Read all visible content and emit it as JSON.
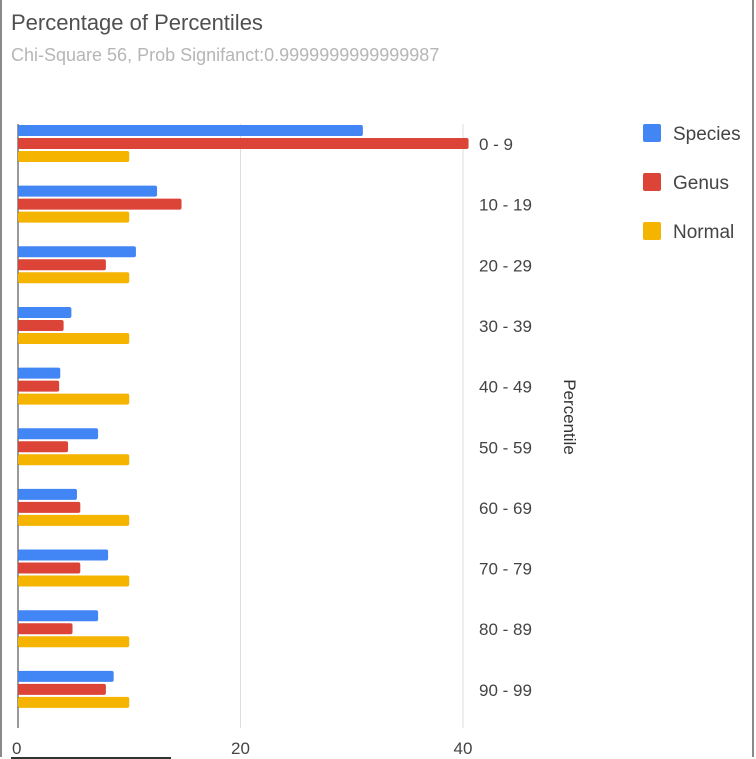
{
  "title": "Percentage of Percentiles",
  "subtitle": "Chi-Square 56, Prob Signifanct:0.9999999999999987",
  "legend": [
    {
      "name": "Species",
      "color": "#4285f4"
    },
    {
      "name": "Genus",
      "color": "#db4437"
    },
    {
      "name": "Normal",
      "color": "#f4b400"
    }
  ],
  "chart_data": {
    "type": "bar",
    "orientation": "horizontal",
    "title": "Percentage of Percentiles",
    "subtitle": "Chi-Square 56, Prob Signifanct:0.9999999999999987",
    "categories": [
      "0 - 9",
      "10 - 19",
      "20 - 29",
      "30 - 39",
      "40 - 49",
      "50 - 59",
      "60 - 69",
      "70 - 79",
      "80 - 89",
      "90 - 99"
    ],
    "series": [
      {
        "name": "Species",
        "color": "#4285f4",
        "values": [
          31,
          12.5,
          10.6,
          4.8,
          3.8,
          7.2,
          5.3,
          8.1,
          7.2,
          8.6
        ]
      },
      {
        "name": "Genus",
        "color": "#db4437",
        "values": [
          40.5,
          14.7,
          7.9,
          4.1,
          3.7,
          4.5,
          5.6,
          5.6,
          4.9,
          7.9
        ]
      },
      {
        "name": "Normal",
        "color": "#f4b400",
        "values": [
          10,
          10,
          10,
          10,
          10,
          10,
          10,
          10,
          10,
          10
        ]
      }
    ],
    "xlabel": "",
    "ylabel": "Percentile",
    "xlim": [
      0,
      40
    ],
    "x_ticks": [
      0,
      20,
      40
    ],
    "grid": true,
    "legend_position": "right"
  }
}
